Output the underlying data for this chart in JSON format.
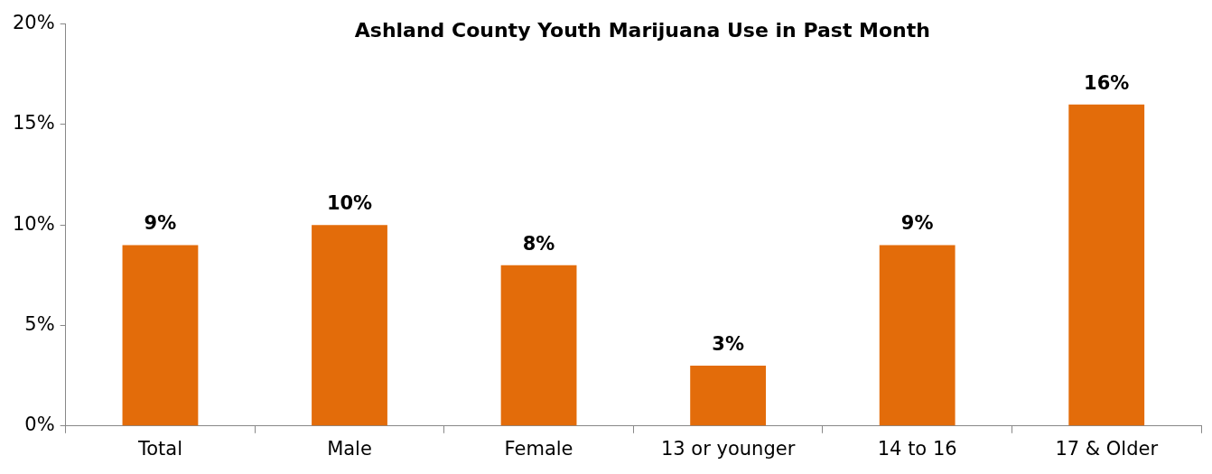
{
  "chart_data": {
    "type": "bar",
    "title": "Ashland County Youth Marijuana Use in Past Month",
    "categories": [
      "Total",
      "Male",
      "Female",
      "13 or younger",
      "14 to 16",
      "17 & Older"
    ],
    "values": [
      9,
      10,
      8,
      3,
      9,
      16
    ],
    "value_labels": [
      "9%",
      "10%",
      "8%",
      "3%",
      "9%",
      "16%"
    ],
    "color": "#e36c0a",
    "ylim": [
      0,
      20
    ],
    "yticks": [
      {
        "value": 0,
        "label": "0%"
      },
      {
        "value": 5,
        "label": "5%"
      },
      {
        "value": 10,
        "label": "10%"
      },
      {
        "value": 15,
        "label": "15%"
      },
      {
        "value": 20,
        "label": "20%"
      }
    ],
    "grid": false,
    "legend": false
  }
}
